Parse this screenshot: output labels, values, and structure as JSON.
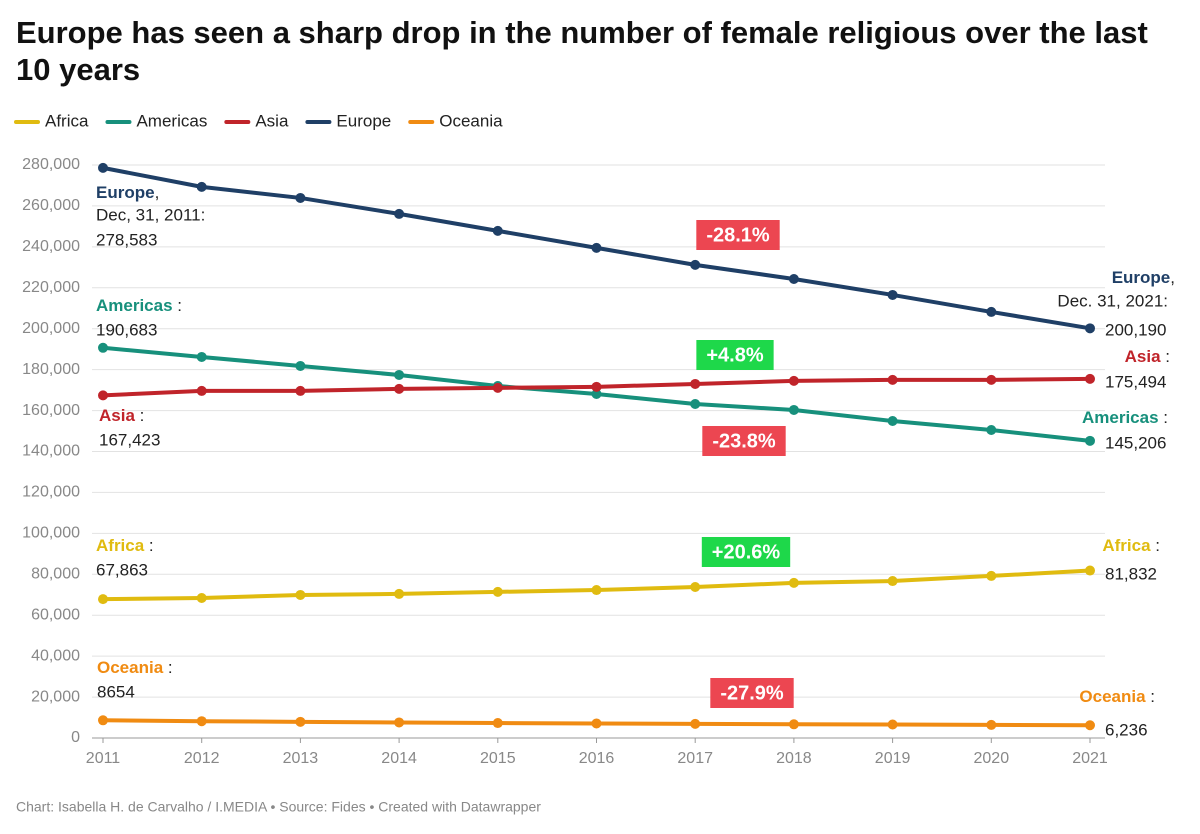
{
  "chart_data": {
    "type": "line",
    "title": "Europe has seen a sharp drop in the number of female religious over the last 10 years",
    "footer": "Chart: Isabella H. de Carvalho / I.MEDIA • Source: Fides • Created with Datawrapper",
    "x": [
      2011,
      2012,
      2013,
      2014,
      2015,
      2016,
      2017,
      2018,
      2019,
      2020,
      2021
    ],
    "xlim": [
      2011,
      2021
    ],
    "xticks": [
      2011,
      2012,
      2013,
      2014,
      2015,
      2016,
      2017,
      2018,
      2019,
      2020,
      2021
    ],
    "ylim": [
      0,
      280000
    ],
    "yticks": [
      0,
      {
        "value": 20000,
        "label": "20,000"
      },
      {
        "value": 40000,
        "label": "40,000"
      },
      {
        "value": 60000,
        "label": "60,000"
      },
      {
        "value": 80000,
        "label": "80,000"
      },
      {
        "value": 100000,
        "label": "100,000"
      },
      {
        "value": 120000,
        "label": "120,000"
      },
      {
        "value": 140000,
        "label": "140,000"
      },
      {
        "value": 160000,
        "label": "160,000"
      },
      {
        "value": 180000,
        "label": "180,000"
      },
      {
        "value": 200000,
        "label": "200,000"
      },
      {
        "value": 220000,
        "label": "220,000"
      },
      {
        "value": 240000,
        "label": "240,000"
      },
      {
        "value": 260000,
        "label": "260,000"
      },
      {
        "value": 280000,
        "label": "280,000"
      }
    ],
    "grid": true,
    "legend": "top-left",
    "series": [
      {
        "name": "Africa",
        "color": "#e0bb10",
        "values": [
          67863,
          68400,
          69900,
          70400,
          71400,
          72300,
          73800,
          75800,
          76700,
          79200,
          81832
        ],
        "value_labels": [
          "67,863",
          null,
          null,
          null,
          null,
          null,
          null,
          null,
          null,
          null,
          "81,832"
        ],
        "start_note": " :",
        "end_note": " :",
        "change_label": "+20.6%",
        "change_color": "#1ed84a"
      },
      {
        "name": "Americas",
        "color": "#17907c",
        "values": [
          190683,
          186200,
          181800,
          177400,
          172000,
          168100,
          163200,
          160300,
          154900,
          150500,
          145206
        ],
        "value_labels": [
          "190,683",
          null,
          null,
          null,
          null,
          null,
          null,
          null,
          null,
          null,
          "145,206"
        ],
        "start_note": " :",
        "end_note": " :",
        "change_label": "-23.8%",
        "change_color": "#ec4651"
      },
      {
        "name": "Asia",
        "color": "#c0242a",
        "values": [
          167423,
          169600,
          169600,
          170600,
          171100,
          171600,
          173000,
          174500,
          175000,
          175000,
          175494
        ],
        "value_labels": [
          "167,423",
          null,
          null,
          null,
          null,
          null,
          null,
          null,
          null,
          null,
          "175,494"
        ],
        "start_note": " :",
        "end_note": " :",
        "change_label": "+4.8%",
        "change_color": "#1ed84a"
      },
      {
        "name": "Europe",
        "color": "#1f3f66",
        "values": [
          278583,
          269300,
          263900,
          256100,
          247800,
          239500,
          231200,
          224300,
          216500,
          208200,
          200190
        ],
        "value_labels": [
          "278,583",
          null,
          null,
          null,
          null,
          null,
          null,
          null,
          null,
          null,
          "200,190"
        ],
        "start_note": ",",
        "start_line": "Dec, 31, 2011:",
        "end_note": ",",
        "end_line": "Dec. 31, 2021:",
        "change_label": "-28.1%",
        "change_color": "#ec4651"
      },
      {
        "name": "Oceania",
        "color": "#f08b12",
        "values": [
          8654,
          8200,
          7900,
          7600,
          7300,
          7100,
          6900,
          6700,
          6600,
          6400,
          6236
        ],
        "value_labels": [
          "8654",
          null,
          null,
          null,
          null,
          null,
          null,
          null,
          null,
          null,
          "6,236"
        ],
        "start_note": " :",
        "end_note": " :",
        "change_label": "-27.9%",
        "change_color": "#ec4651"
      }
    ]
  }
}
